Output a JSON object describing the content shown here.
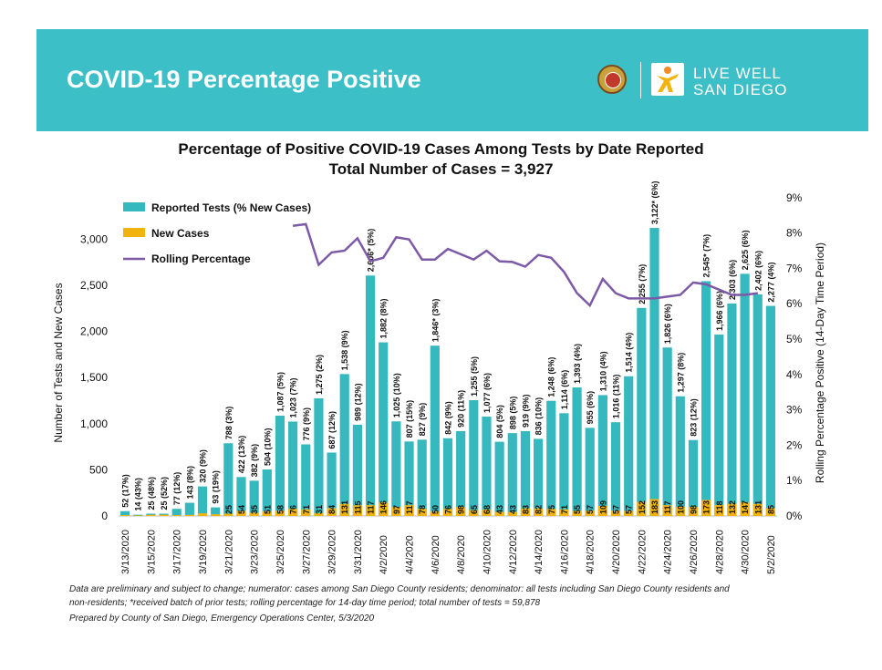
{
  "header": {
    "title": "COVID-19 Percentage Positive",
    "logo_line1": "LIVE WELL",
    "logo_line2": "SAN DIEGO",
    "seal_icon": "county-seal-icon",
    "logo_icon": "live-well-figure-icon",
    "banner_color": "#3dbfc7"
  },
  "chart_data": {
    "type": "bar",
    "title": "Percentage of Positive COVID-19 Cases Among Tests by Date Reported",
    "subtitle": "Total Number of Cases = 3,927",
    "ylabel": "Number of Tests and New Cases",
    "ylabel_right": "Rolling Percentage Positive (14-Day Time Period)",
    "ylim": [
      0,
      3500
    ],
    "yticks": [
      "0",
      "500",
      "1,000",
      "1,500",
      "2,000",
      "2,500",
      "3,000"
    ],
    "ylim_right": [
      0,
      9
    ],
    "yticks_right": [
      "0%",
      "1%",
      "2%",
      "3%",
      "4%",
      "5%",
      "6%",
      "7%",
      "8%",
      "9%"
    ],
    "legend_position": "top-left",
    "grid": false,
    "categories": [
      "3/13/2020",
      "3/14/2020",
      "3/15/2020",
      "3/16/2020",
      "3/17/2020",
      "3/18/2020",
      "3/19/2020",
      "3/20/2020",
      "3/21/2020",
      "3/22/2020",
      "3/23/2020",
      "3/24/2020",
      "3/25/2020",
      "3/26/2020",
      "3/27/2020",
      "3/28/2020",
      "3/29/2020",
      "3/30/2020",
      "3/31/2020",
      "4/1/2020",
      "4/2/2020",
      "4/3/2020",
      "4/4/2020",
      "4/5/2020",
      "4/6/2020",
      "4/7/2020",
      "4/8/2020",
      "4/9/2020",
      "4/10/2020",
      "4/11/2020",
      "4/12/2020",
      "4/13/2020",
      "4/14/2020",
      "4/15/2020",
      "4/16/2020",
      "4/17/2020",
      "4/18/2020",
      "4/19/2020",
      "4/20/2020",
      "4/21/2020",
      "4/22/2020",
      "4/23/2020",
      "4/24/2020",
      "4/25/2020",
      "4/26/2020",
      "4/27/2020",
      "4/28/2020",
      "4/29/2020",
      "4/30/2020",
      "5/1/2020",
      "5/2/2020"
    ],
    "xtick_labels": [
      "3/13/2020",
      "3/15/2020",
      "3/17/2020",
      "3/19/2020",
      "3/21/2020",
      "3/23/2020",
      "3/25/2020",
      "3/27/2020",
      "3/29/2020",
      "3/31/2020",
      "4/2/2020",
      "4/4/2020",
      "4/6/2020",
      "4/8/2020",
      "4/10/2020",
      "4/12/2020",
      "4/14/2020",
      "4/16/2020",
      "4/18/2020",
      "4/20/2020",
      "4/22/2020",
      "4/24/2020",
      "4/26/2020",
      "4/28/2020",
      "4/30/2020",
      "5/2/2020"
    ],
    "series": [
      {
        "name": "Reported Tests (% New Cases)",
        "color": "#36b9be",
        "values": [
          52,
          14,
          25,
          25,
          77,
          143,
          320,
          93,
          788,
          422,
          382,
          504,
          1087,
          1023,
          776,
          1275,
          687,
          1538,
          989,
          2606,
          1882,
          1025,
          807,
          827,
          1846,
          842,
          920,
          1255,
          1077,
          804,
          898,
          919,
          836,
          1248,
          1114,
          1393,
          955,
          1310,
          1016,
          1514,
          2255,
          3122,
          1826,
          1297,
          823,
          2545,
          1966,
          2303,
          2625,
          2402,
          2277
        ],
        "labels": [
          "52 (17%)",
          "14 (43%)",
          "25 (48%)",
          "25 (52%)",
          "77 (12%)",
          "143 (8%)",
          "320 (9%)",
          "93 (19%)",
          "788 (3%)",
          "422 (13%)",
          "382 (9%)",
          "504 (10%)",
          "1,087 (5%)",
          "1,023 (7%)",
          "776 (9%)",
          "1,275 (2%)",
          "687 (12%)",
          "1,538 (9%)",
          "989 (12%)",
          "2,606* (5%)",
          "1,882 (8%)",
          "1,025 (10%)",
          "807 (15%)",
          "827 (9%)",
          "1,846* (3%)",
          "842 (9%)",
          "920 (11%)",
          "1,255 (5%)",
          "1,077 (6%)",
          "804 (5%)",
          "898 (5%)",
          "919 (9%)",
          "836 (10%)",
          "1,248 (6%)",
          "1,114 (6%)",
          "1,393 (4%)",
          "955 (6%)",
          "1,310 (4%)",
          "1,016 (11%)",
          "1,514 (4%)",
          "2,255 (7%)",
          "3,122* (6%)",
          "1,826 (6%)",
          "1,297 (8%)",
          "823 (12%)",
          "2,545* (7%)",
          "1,966 (6%)",
          "2,303 (6%)",
          "2,625 (6%)",
          "2,402 (6%)",
          "2,277 (4%)"
        ]
      },
      {
        "name": "New Cases",
        "color": "#f2b30f",
        "values": [
          9,
          6,
          12,
          13,
          9,
          11,
          29,
          18,
          25,
          54,
          35,
          51,
          58,
          76,
          71,
          31,
          84,
          131,
          115,
          117,
          146,
          97,
          117,
          78,
          50,
          76,
          98,
          65,
          68,
          43,
          43,
          83,
          82,
          75,
          71,
          55,
          57,
          109,
          57,
          57,
          152,
          183,
          117,
          100,
          98,
          173,
          118,
          132,
          147,
          131,
          85
        ],
        "labels": [
          "",
          "",
          "",
          "",
          "",
          "",
          "",
          "",
          "25",
          "54",
          "35",
          "51",
          "58",
          "76",
          "71",
          "31",
          "84",
          "131",
          "115",
          "117",
          "146",
          "97",
          "117",
          "78",
          "50",
          "76",
          "98",
          "65",
          "68",
          "43",
          "43",
          "83",
          "82",
          "75",
          "71",
          "55",
          "57",
          "109",
          "57",
          "57",
          "152",
          "183",
          "117",
          "100",
          "98",
          "173",
          "118",
          "132",
          "147",
          "131",
          "85"
        ]
      },
      {
        "name": "Rolling Percentage",
        "color": "#7d5aa6",
        "axis": "right",
        "values": [
          null,
          null,
          null,
          null,
          null,
          null,
          null,
          null,
          null,
          null,
          null,
          null,
          null,
          8.2,
          8.25,
          7.1,
          7.45,
          7.5,
          7.85,
          7.2,
          7.3,
          7.88,
          7.82,
          7.25,
          7.25,
          7.55,
          7.4,
          7.25,
          7.5,
          7.2,
          7.18,
          7.05,
          7.38,
          7.3,
          6.9,
          6.3,
          5.95,
          6.7,
          6.3,
          6.15,
          6.15,
          6.15,
          6.2,
          6.25,
          6.6,
          6.55,
          6.4,
          6.25,
          6.25,
          6.3,
          null
        ]
      }
    ]
  },
  "footer": {
    "note_line1": "Data are preliminary and subject to change; numerator: cases among San Diego County residents; denominator: all tests including San Diego County residents and",
    "note_line2": "non-residents; *received batch of prior tests; rolling percentage for 14-day time period; total number of tests = 59,878",
    "prepared_by": "Prepared by County of San Diego, Emergency Operations Center, 5/3/2020"
  }
}
